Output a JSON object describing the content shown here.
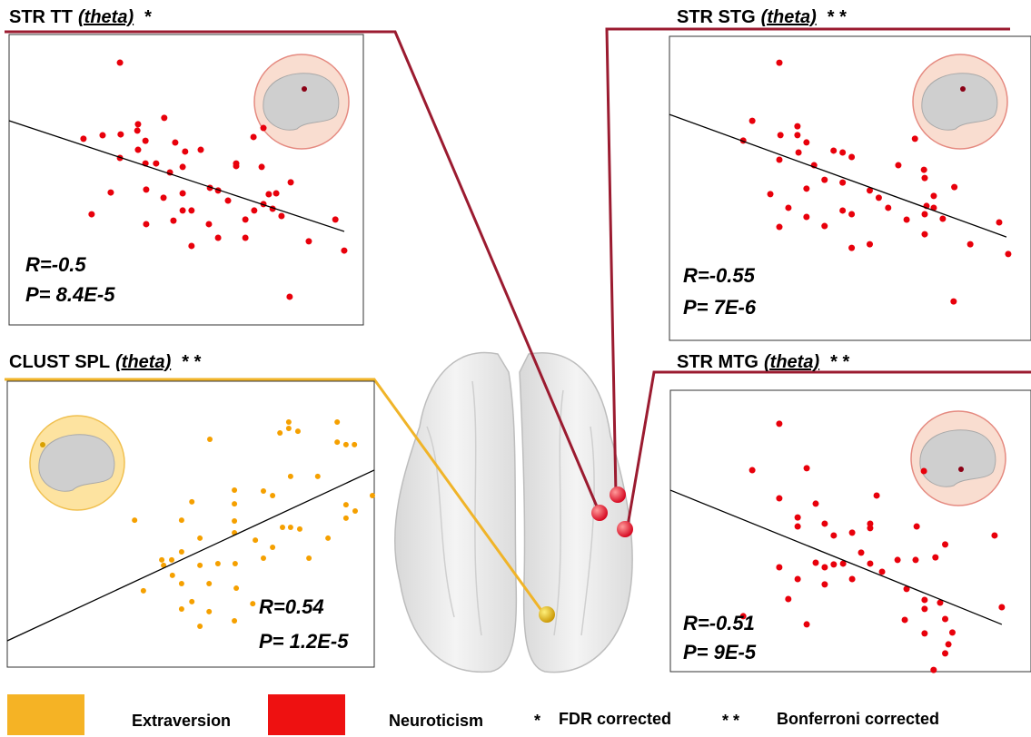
{
  "chart_data": [
    {
      "type": "scatter",
      "title": "STR TT",
      "title_band": "(theta)",
      "title_mark": "*",
      "color": "#e8000b",
      "xlim": [
        0,
        10
      ],
      "ylim": [
        0,
        10
      ],
      "x": [
        3.13,
        2.1,
        2.64,
        3.15,
        3.62,
        3.64,
        3.85,
        4.38,
        3.64,
        4.69,
        4.97,
        5.41,
        3.13,
        3.85,
        4.15,
        4.54,
        4.9,
        6.9,
        6.41,
        7.18,
        7.13,
        6.41,
        2.87,
        3.87,
        4.36,
        4.9,
        5.67,
        5.9,
        7.33,
        7.95,
        7.54,
        2.33,
        3.87,
        4.64,
        4.9,
        5.15,
        5.64,
        6.18,
        6.67,
        7.18,
        7.44,
        7.69,
        5.15,
        5.9,
        6.67,
        8.46,
        9.21,
        9.46,
        7.92,
        6.92
      ],
      "y": [
        9.03,
        6.41,
        6.53,
        6.56,
        6.69,
        6.91,
        6.34,
        7.13,
        6.03,
        6.28,
        5.97,
        6.03,
        5.75,
        5.56,
        5.56,
        5.25,
        5.44,
        6.47,
        5.56,
        6.78,
        5.44,
        5.47,
        4.56,
        4.66,
        4.38,
        4.53,
        4.72,
        4.63,
        4.5,
        4.91,
        4.53,
        3.81,
        3.47,
        3.59,
        3.94,
        3.94,
        3.47,
        4.28,
        3.63,
        4.16,
        4.0,
        3.75,
        2.72,
        3.0,
        3.0,
        2.88,
        3.63,
        2.56,
        0.97,
        3.94
      ],
      "fit_line": {
        "x": [
          0,
          9.46
        ],
        "y": [
          7.03,
          3.22
        ]
      },
      "annotations": [
        "R=-0.5",
        "P= 8.4E-5"
      ]
    },
    {
      "type": "scatter",
      "title": "STR STG",
      "title_band": "(theta)",
      "title_mark": "* *",
      "color": "#e8000b",
      "xlim": [
        0,
        10
      ],
      "ylim": [
        0,
        10
      ],
      "x": [
        3.04,
        2.04,
        2.29,
        3.07,
        3.54,
        3.54,
        3.79,
        3.04,
        3.57,
        4.0,
        4.54,
        4.79,
        5.04,
        6.79,
        6.33,
        7.04,
        7.06,
        2.79,
        3.79,
        4.29,
        4.79,
        5.54,
        5.79,
        7.31,
        7.88,
        7.11,
        3.29,
        3.79,
        4.79,
        5.04,
        6.05,
        6.56,
        7.06,
        7.56,
        3.04,
        4.29,
        5.04,
        5.54,
        7.06,
        8.32,
        9.12,
        9.37,
        7.86,
        7.31
      ],
      "y": [
        9.13,
        6.57,
        7.22,
        6.75,
        7.04,
        6.75,
        6.51,
        5.94,
        6.18,
        5.76,
        6.24,
        6.18,
        6.03,
        6.63,
        5.76,
        5.61,
        5.34,
        4.81,
        4.99,
        5.28,
        5.19,
        4.93,
        4.69,
        4.75,
        5.04,
        4.42,
        4.36,
        4.06,
        4.27,
        4.15,
        4.36,
        3.97,
        4.15,
        4.0,
        3.73,
        3.76,
        3.04,
        3.16,
        3.49,
        3.16,
        3.88,
        2.84,
        1.28,
        4.36
      ],
      "fit_line": {
        "x": [
          0,
          9.32
        ],
        "y": [
          7.43,
          3.4
        ]
      },
      "annotations": [
        "R=-0.55",
        "P= 7E-6"
      ]
    },
    {
      "type": "scatter",
      "title": "CLUST SPL",
      "title_band": "(theta)",
      "title_mark": "* *",
      "color": "#f5a000",
      "xlim": [
        0,
        10
      ],
      "ylim": [
        0,
        10
      ],
      "x": [
        7.67,
        7.67,
        7.43,
        7.92,
        8.99,
        8.99,
        9.23,
        9.46,
        5.52,
        7.72,
        8.46,
        6.98,
        7.23,
        5.03,
        6.19,
        6.19,
        9.23,
        9.48,
        9.23,
        9.95,
        3.47,
        4.75,
        6.19,
        7.5,
        7.72,
        7.97,
        8.74,
        5.25,
        6.19,
        6.76,
        7.23,
        8.22,
        4.21,
        4.48,
        4.26,
        4.75,
        5.25,
        5.74,
        6.21,
        6.98,
        4.5,
        4.75,
        5.5,
        3.71,
        5.03,
        6.24,
        4.75,
        5.5,
        5.25,
        6.19,
        6.69
      ],
      "y": [
        8.57,
        8.35,
        8.19,
        8.25,
        8.57,
        7.87,
        7.78,
        7.78,
        7.97,
        6.67,
        6.67,
        6.16,
        6.0,
        5.78,
        6.19,
        5.71,
        5.68,
        5.46,
        5.21,
        6.0,
        5.14,
        5.14,
        5.11,
        4.89,
        4.89,
        4.83,
        4.51,
        4.51,
        4.7,
        4.44,
        4.19,
        3.81,
        3.75,
        3.75,
        3.56,
        4.03,
        3.56,
        3.62,
        3.62,
        3.81,
        3.21,
        2.92,
        2.92,
        2.67,
        2.29,
        2.76,
        2.03,
        1.94,
        1.43,
        1.62,
        2.22
      ],
      "fit_line": {
        "x": [
          0,
          10
        ],
        "y": [
          0.92,
          6.89
        ]
      },
      "annotations": [
        "R=0.54",
        "P= 1.2E-5"
      ]
    },
    {
      "type": "scatter",
      "title": "STR MTG",
      "title_band": "(theta)",
      "title_mark": "* *",
      "color": "#e8000b",
      "xlim": [
        0,
        10
      ],
      "ylim": [
        0,
        10
      ],
      "x": [
        3.02,
        2.27,
        3.78,
        3.02,
        3.53,
        3.53,
        4.03,
        4.28,
        4.53,
        5.04,
        5.72,
        5.54,
        5.54,
        7.03,
        6.83,
        7.62,
        7.35,
        8.99,
        3.02,
        3.53,
        4.03,
        4.28,
        4.53,
        4.79,
        5.29,
        5.54,
        6.3,
        6.8,
        5.87,
        4.28,
        5.04,
        2.02,
        3.27,
        3.78,
        6.55,
        7.05,
        7.48,
        7.62,
        7.82,
        9.19,
        6.5,
        7.05,
        7.05,
        7.71,
        7.3,
        7.62
      ],
      "y": [
        8.81,
        7.16,
        7.23,
        6.16,
        5.48,
        5.16,
        5.97,
        5.26,
        4.84,
        4.94,
        6.26,
        5.26,
        5.1,
        7.13,
        5.16,
        4.52,
        4.06,
        4.84,
        3.71,
        3.29,
        3.87,
        3.71,
        3.81,
        3.84,
        4.23,
        3.84,
        3.97,
        3.97,
        3.55,
        3.1,
        3.29,
        1.97,
        2.58,
        1.68,
        2.94,
        2.55,
        2.45,
        1.87,
        1.39,
        2.29,
        1.84,
        2.23,
        1.36,
        0.97,
        0.06,
        0.65
      ],
      "fit_line": {
        "x": [
          0,
          9.19
        ],
        "y": [
          6.45,
          1.68
        ]
      },
      "annotations": [
        "R=-0.51",
        "P= 9E-5"
      ]
    }
  ],
  "legend": {
    "items": [
      {
        "label": "Extraversion",
        "color": "#f5b325"
      },
      {
        "label": "Neuroticism",
        "color": "#ee1111"
      }
    ],
    "notes": [
      {
        "symbol": "*",
        "label": "FDR corrected"
      },
      {
        "symbol": "* *",
        "label": "Bonferroni corrected"
      }
    ]
  }
}
